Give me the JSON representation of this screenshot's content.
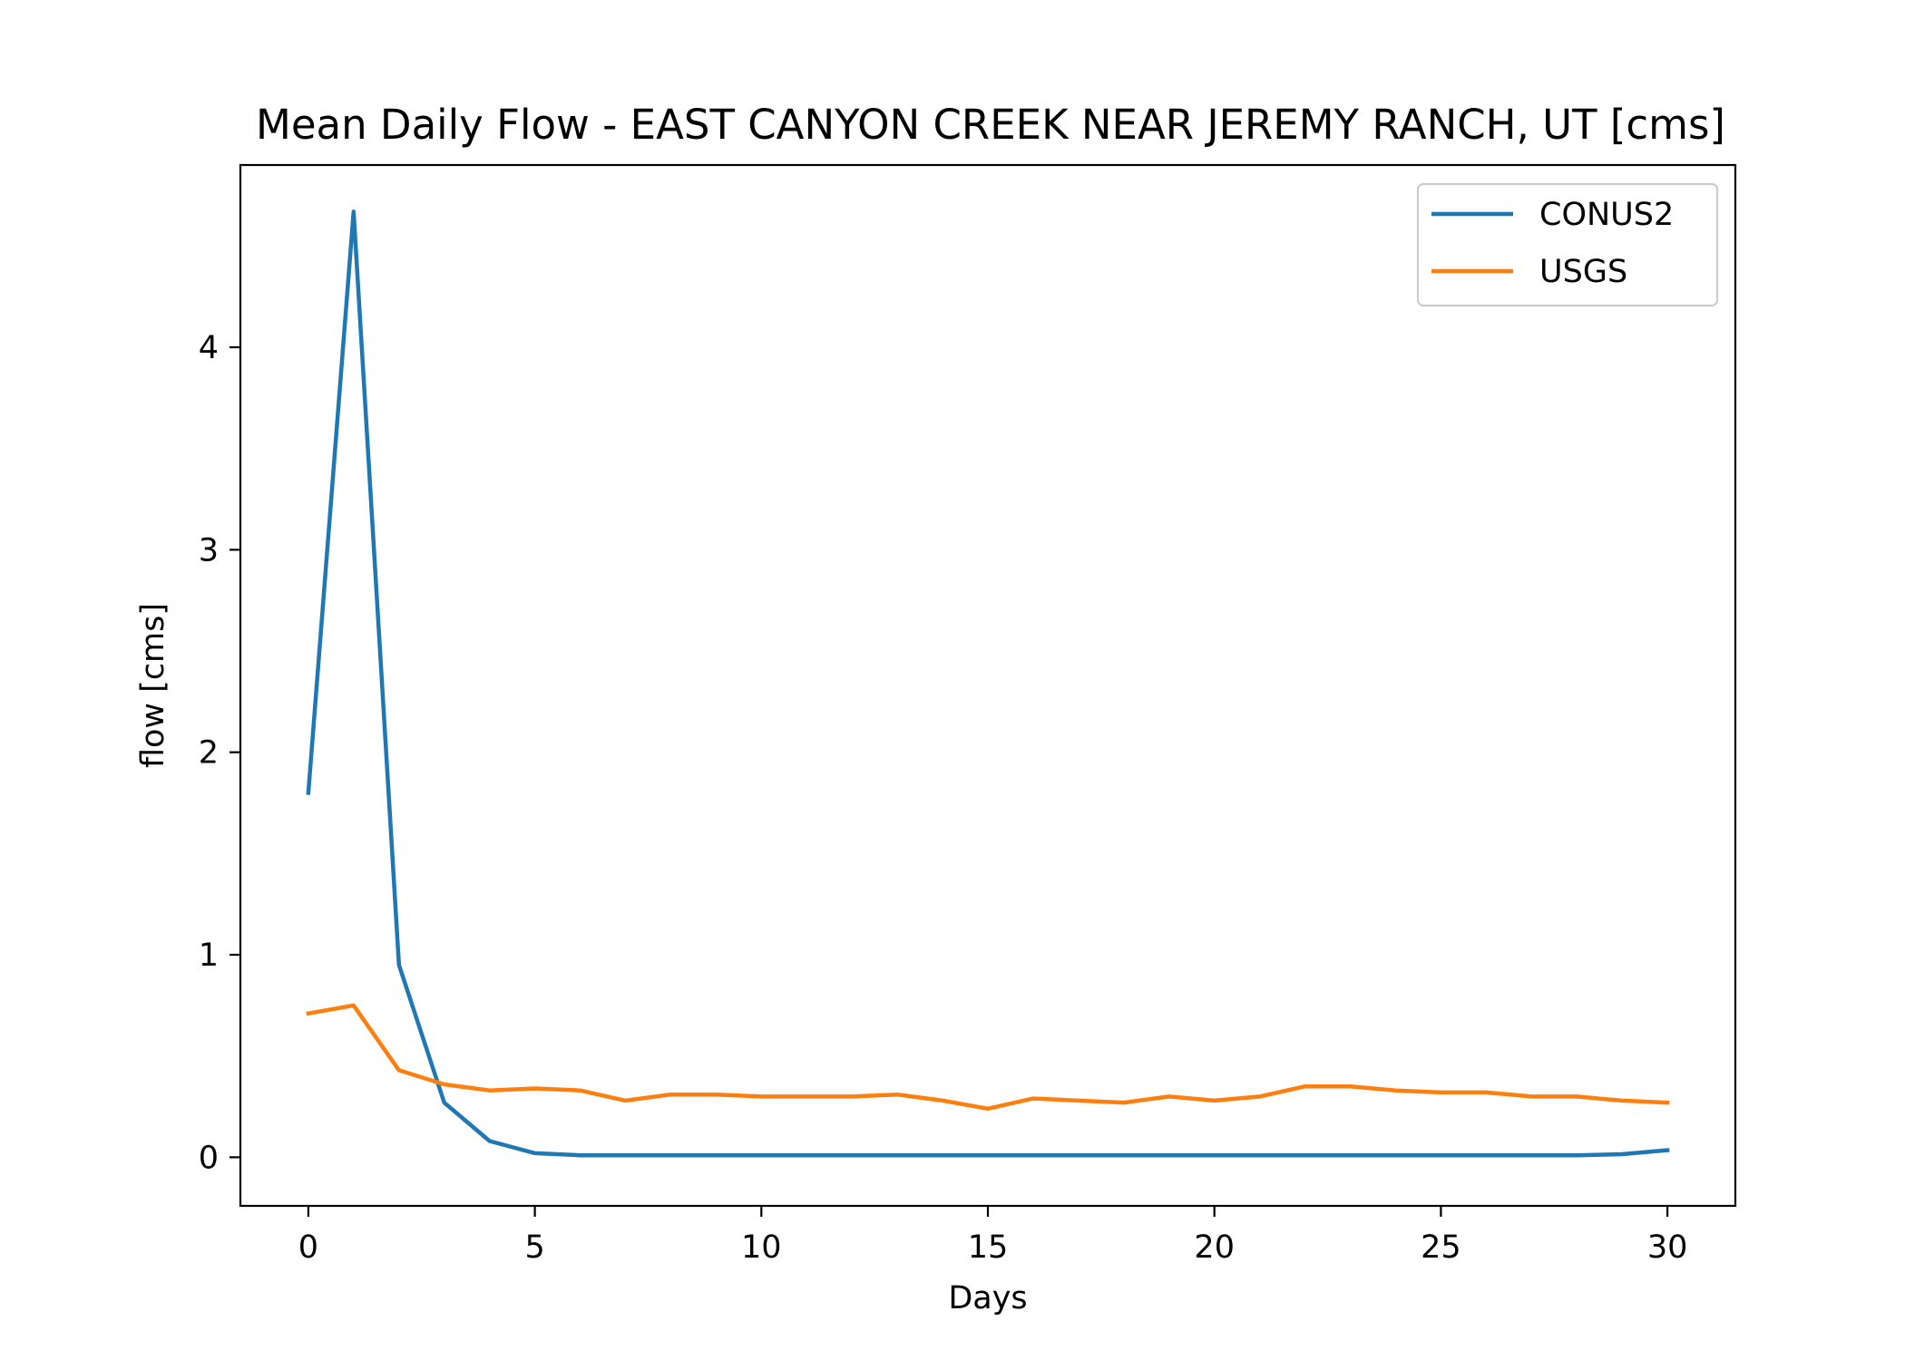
{
  "chart_data": {
    "type": "line",
    "title": "Mean Daily Flow - EAST CANYON CREEK NEAR JEREMY RANCH, UT [cms]",
    "xlabel": "Days",
    "ylabel": "flow [cms]",
    "xlim": [
      -1.5,
      31.5
    ],
    "ylim": [
      -0.24,
      4.9
    ],
    "xticks": [
      0,
      5,
      10,
      15,
      20,
      25,
      30
    ],
    "yticks": [
      0,
      1,
      2,
      3,
      4
    ],
    "grid": false,
    "legend": "top-right",
    "x": [
      0,
      1,
      2,
      3,
      4,
      5,
      6,
      7,
      8,
      9,
      10,
      11,
      12,
      13,
      14,
      15,
      16,
      17,
      18,
      19,
      20,
      21,
      22,
      23,
      24,
      25,
      26,
      27,
      28,
      29,
      30
    ],
    "series": [
      {
        "name": "CONUS2",
        "color": "#1f77b4",
        "values": [
          1.8,
          4.67,
          0.95,
          0.27,
          0.08,
          0.02,
          0.01,
          0.01,
          0.01,
          0.01,
          0.01,
          0.01,
          0.01,
          0.01,
          0.01,
          0.01,
          0.01,
          0.01,
          0.01,
          0.01,
          0.01,
          0.01,
          0.01,
          0.01,
          0.01,
          0.01,
          0.01,
          0.01,
          0.01,
          0.015,
          0.035
        ]
      },
      {
        "name": "USGS",
        "color": "#ff7f0e",
        "values": [
          0.71,
          0.75,
          0.43,
          0.36,
          0.33,
          0.34,
          0.33,
          0.28,
          0.31,
          0.31,
          0.3,
          0.3,
          0.3,
          0.31,
          0.28,
          0.24,
          0.29,
          0.28,
          0.27,
          0.3,
          0.28,
          0.3,
          0.35,
          0.35,
          0.33,
          0.32,
          0.32,
          0.3,
          0.3,
          0.28,
          0.27
        ]
      }
    ]
  }
}
